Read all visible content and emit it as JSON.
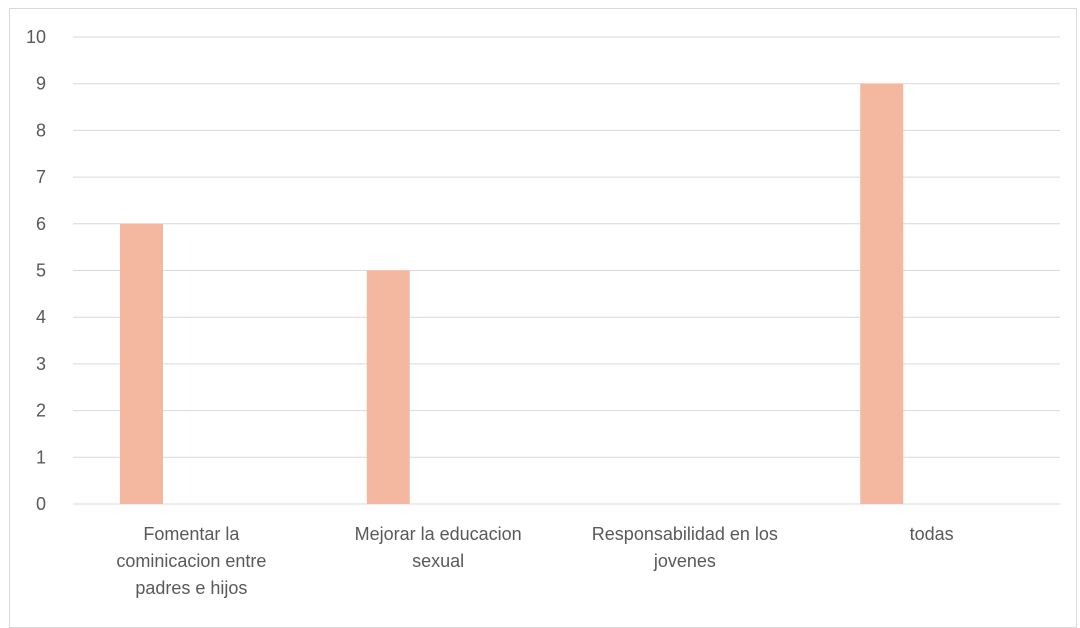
{
  "chart_data": {
    "type": "bar",
    "title": "",
    "xlabel": "",
    "ylabel": "",
    "categories": [
      [
        "Fomentar la",
        "cominicacion entre",
        "padres e hijos"
      ],
      [
        "Mejorar la educacion",
        "sexual"
      ],
      [
        "Responsabilidad en los",
        "jovenes"
      ],
      [
        "todas"
      ]
    ],
    "category_names": [
      "Fomentar la cominicacion entre padres e hijos",
      "Mejorar la educacion sexual",
      "Responsabilidad en los jovenes",
      "todas"
    ],
    "values": [
      6,
      5,
      0,
      9
    ],
    "ylim": [
      0,
      10
    ],
    "yticks": [
      "0",
      "1",
      "2",
      "3",
      "4",
      "5",
      "6",
      "7",
      "8",
      "9",
      "10"
    ],
    "grid": true,
    "legend": "none",
    "colors": {
      "bar": "#f4b8a1",
      "grid": "#d9d9d9",
      "text": "#595959"
    }
  }
}
